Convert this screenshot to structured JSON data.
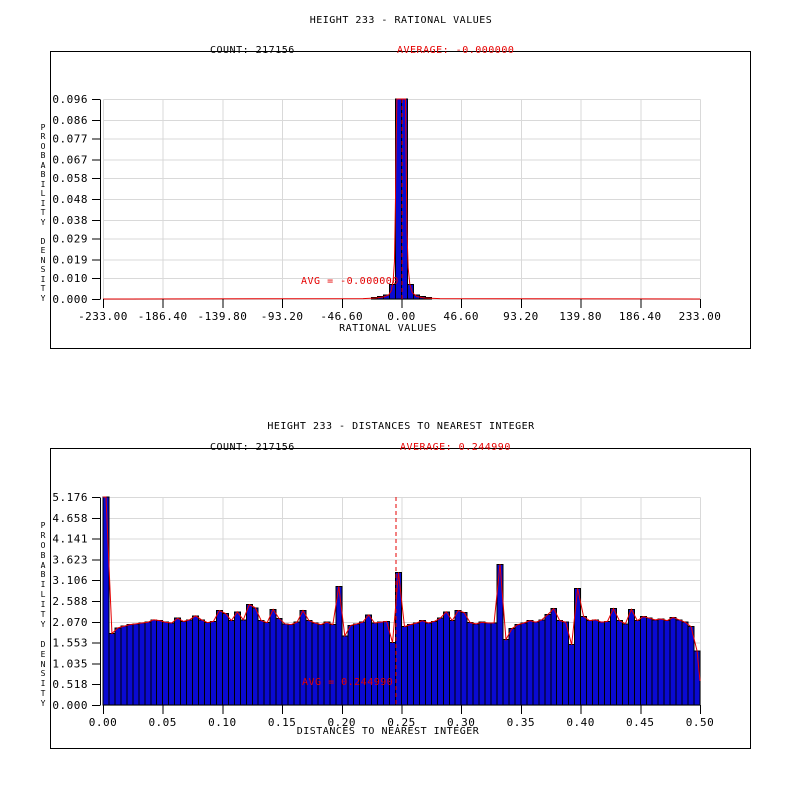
{
  "page": {
    "background": "#ffffff"
  },
  "colors": {
    "bar_fill": "#0a0ad2",
    "bar_edge": "#000000",
    "line_red": "#e60000",
    "grid": "#d9d9d9",
    "axis": "#000000",
    "text": "#000000"
  },
  "chart_data": [
    {
      "type": "bar",
      "title": "HEIGHT 233 - RATIONAL VALUES",
      "count_label": "COUNT: 217156",
      "count": 217156,
      "average_label": "AVERAGE: -0.000000",
      "average": -0.0,
      "avg_note": "AVG = -0.000000",
      "xlabel": "RATIONAL VALUES",
      "ylabel": "PROBABILITY DENSITY",
      "xlim": [
        -233,
        233
      ],
      "ylim": [
        0,
        0.096
      ],
      "grid": true,
      "xticks": [
        -233,
        -186.4,
        -139.8,
        -93.2,
        -46.6,
        0,
        46.6,
        93.2,
        139.8,
        186.4,
        233
      ],
      "xtick_labels": [
        "-233.00",
        "-186.40",
        "-139.80",
        "-93.20",
        "-46.60",
        "0.00",
        "46.60",
        "93.20",
        "139.80",
        "186.40",
        "233.00"
      ],
      "yticks": [
        0.096,
        0.086,
        0.077,
        0.067,
        0.058,
        0.048,
        0.038,
        0.029,
        0.019,
        0.01,
        0.0
      ],
      "ytick_labels": [
        "0.096",
        "0.086",
        "0.077",
        "0.067",
        "0.058",
        "0.048",
        "0.038",
        "0.029",
        "0.019",
        "0.010",
        "0.000"
      ],
      "bars": {
        "bin_width": 4.66,
        "items": [
          [
            -20.97,
            0.0008
          ],
          [
            -16.31,
            0.0012
          ],
          [
            -11.65,
            0.002
          ],
          [
            -6.99,
            0.007
          ],
          [
            -2.33,
            0.096
          ],
          [
            2.33,
            0.096
          ],
          [
            6.99,
            0.007
          ],
          [
            11.65,
            0.002
          ],
          [
            16.31,
            0.0012
          ],
          [
            20.97,
            0.0008
          ]
        ]
      },
      "curve": [
        [
          -233,
          0
        ],
        [
          -30,
          0.0002
        ],
        [
          -20,
          0.0005
        ],
        [
          -14,
          0.001
        ],
        [
          -10,
          0.002
        ],
        [
          -8,
          0.004
        ],
        [
          -6.5,
          0.009
        ],
        [
          -5.5,
          0.018
        ],
        [
          -4.7,
          0.048
        ],
        [
          -4.1,
          0.078
        ],
        [
          -3.6,
          0.096
        ],
        [
          3.1,
          0.096
        ],
        [
          3.7,
          0.062
        ],
        [
          4.3,
          0.032
        ],
        [
          5.2,
          0.015
        ],
        [
          6.5,
          0.007
        ],
        [
          8.5,
          0.003
        ],
        [
          12,
          0.0012
        ],
        [
          18,
          0.0005
        ],
        [
          30,
          0.0002
        ],
        [
          233,
          0
        ]
      ],
      "avg_line_x": 0
    },
    {
      "type": "bar",
      "title": "HEIGHT 233 - DISTANCES TO NEAREST INTEGER",
      "count_label": "COUNT: 217156",
      "count": 217156,
      "average_label": "AVERAGE: 0.244990",
      "average": 0.24499,
      "avg_note": "AVG = 0.244990",
      "xlabel": "DISTANCES TO NEAREST INTEGER",
      "ylabel": "PROBABILITY DENSITY",
      "xlim": [
        0,
        0.5
      ],
      "ylim": [
        0,
        5.176
      ],
      "grid": true,
      "xticks": [
        0,
        0.05,
        0.1,
        0.15,
        0.2,
        0.25,
        0.3,
        0.35,
        0.4,
        0.45,
        0.5
      ],
      "xtick_labels": [
        "0.00",
        "0.05",
        "0.10",
        "0.15",
        "0.20",
        "0.25",
        "0.30",
        "0.35",
        "0.40",
        "0.45",
        "0.50"
      ],
      "yticks": [
        5.176,
        4.658,
        4.141,
        3.623,
        3.106,
        2.588,
        2.07,
        1.553,
        1.035,
        0.518,
        0.0
      ],
      "ytick_labels": [
        "5.176",
        "4.658",
        "4.141",
        "3.623",
        "3.106",
        "2.588",
        "2.070",
        "1.553",
        "1.035",
        "0.518",
        "0.000"
      ],
      "bars": {
        "x0": 0,
        "bin_width": 0.005,
        "heights": [
          5.3,
          1.78,
          1.92,
          1.96,
          2.0,
          2.02,
          2.04,
          2.06,
          2.12,
          2.1,
          2.06,
          2.04,
          2.16,
          2.08,
          2.12,
          2.22,
          2.12,
          2.05,
          2.08,
          2.35,
          2.28,
          2.1,
          2.32,
          2.12,
          2.5,
          2.42,
          2.1,
          2.05,
          2.38,
          2.15,
          2.02,
          2.0,
          2.06,
          2.35,
          2.1,
          2.04,
          2.0,
          2.06,
          2.0,
          2.95,
          1.72,
          1.98,
          2.02,
          2.06,
          2.24,
          2.04,
          2.06,
          2.08,
          1.55,
          3.3,
          1.95,
          2.0,
          2.04,
          2.1,
          2.04,
          2.08,
          2.16,
          2.32,
          2.1,
          2.35,
          2.3,
          2.05,
          2.02,
          2.06,
          2.04,
          2.04,
          3.5,
          1.63,
          1.9,
          2.0,
          2.04,
          2.1,
          2.06,
          2.12,
          2.25,
          2.4,
          2.1,
          2.06,
          1.5,
          2.9,
          2.2,
          2.1,
          2.12,
          2.06,
          2.08,
          2.4,
          2.1,
          2.02,
          2.38,
          2.1,
          2.2,
          2.16,
          2.12,
          2.14,
          2.1,
          2.18,
          2.12,
          2.06,
          1.95,
          1.35
        ]
      },
      "curve": "from_bars",
      "curve_prefix": [
        [
          0,
          5.3
        ]
      ],
      "curve_suffix": [
        [
          0.5,
          0.6
        ]
      ],
      "avg_line_x": 0.24499
    }
  ]
}
